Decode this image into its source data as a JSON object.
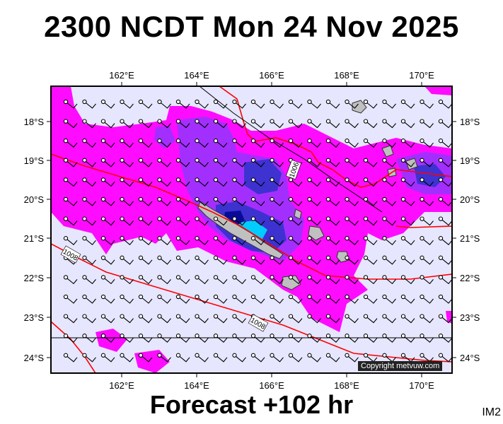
{
  "header": {
    "title": "2300 NCDT Mon 24 Nov 2025"
  },
  "footer": {
    "forecast": "Forecast +102 hr",
    "image_tag": "IM2"
  },
  "map": {
    "copyright": "Copyright metvuw.com",
    "lon_labels": [
      "162°E",
      "164°E",
      "166°E",
      "168°E",
      "170°E"
    ],
    "lat_labels": [
      "18°S",
      "19°S",
      "20°S",
      "21°S",
      "22°S",
      "23°S",
      "24°S"
    ],
    "isobar_labels": [
      "1006",
      "1008",
      "1008"
    ],
    "colors": {
      "ocean": "#e6e6ff",
      "rain_light": "#ff00ff",
      "rain_mid": "#9933ff",
      "rain_heavy": "#3333cc",
      "rain_core": "#00ccff",
      "isobar": "#ff0000",
      "land": "#c0c0c0"
    }
  }
}
